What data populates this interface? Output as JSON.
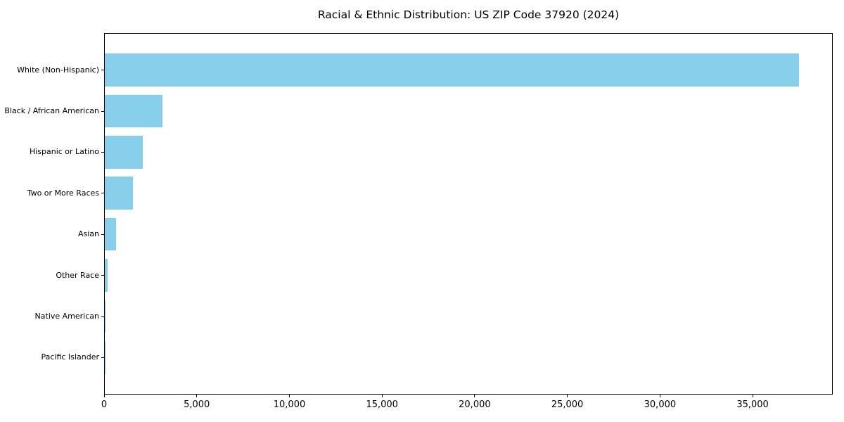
{
  "chart_data": {
    "type": "bar",
    "orientation": "horizontal",
    "title": "Racial & Ethnic Distribution: US ZIP Code 37920 (2024)",
    "categories": [
      "White (Non-Hispanic)",
      "Black / African American",
      "Hispanic or Latino",
      "Two or More Races",
      "Asian",
      "Other Race",
      "Native American",
      "Pacific Islander"
    ],
    "values": [
      37450,
      3120,
      2060,
      1520,
      590,
      140,
      45,
      15
    ],
    "bar_color": "#87CEEB",
    "xlim": [
      0,
      39323
    ],
    "xticks": [
      0,
      5000,
      10000,
      15000,
      20000,
      25000,
      30000,
      35000
    ],
    "xtick_labels": [
      "0",
      "5,000",
      "10,000",
      "15,000",
      "20,000",
      "25,000",
      "30,000",
      "35,000"
    ],
    "xlabel": "",
    "ylabel": "",
    "grid": false,
    "legend": "none",
    "background_color": "#ffffff",
    "axis_color": "#000000",
    "text_color": "#000000"
  }
}
